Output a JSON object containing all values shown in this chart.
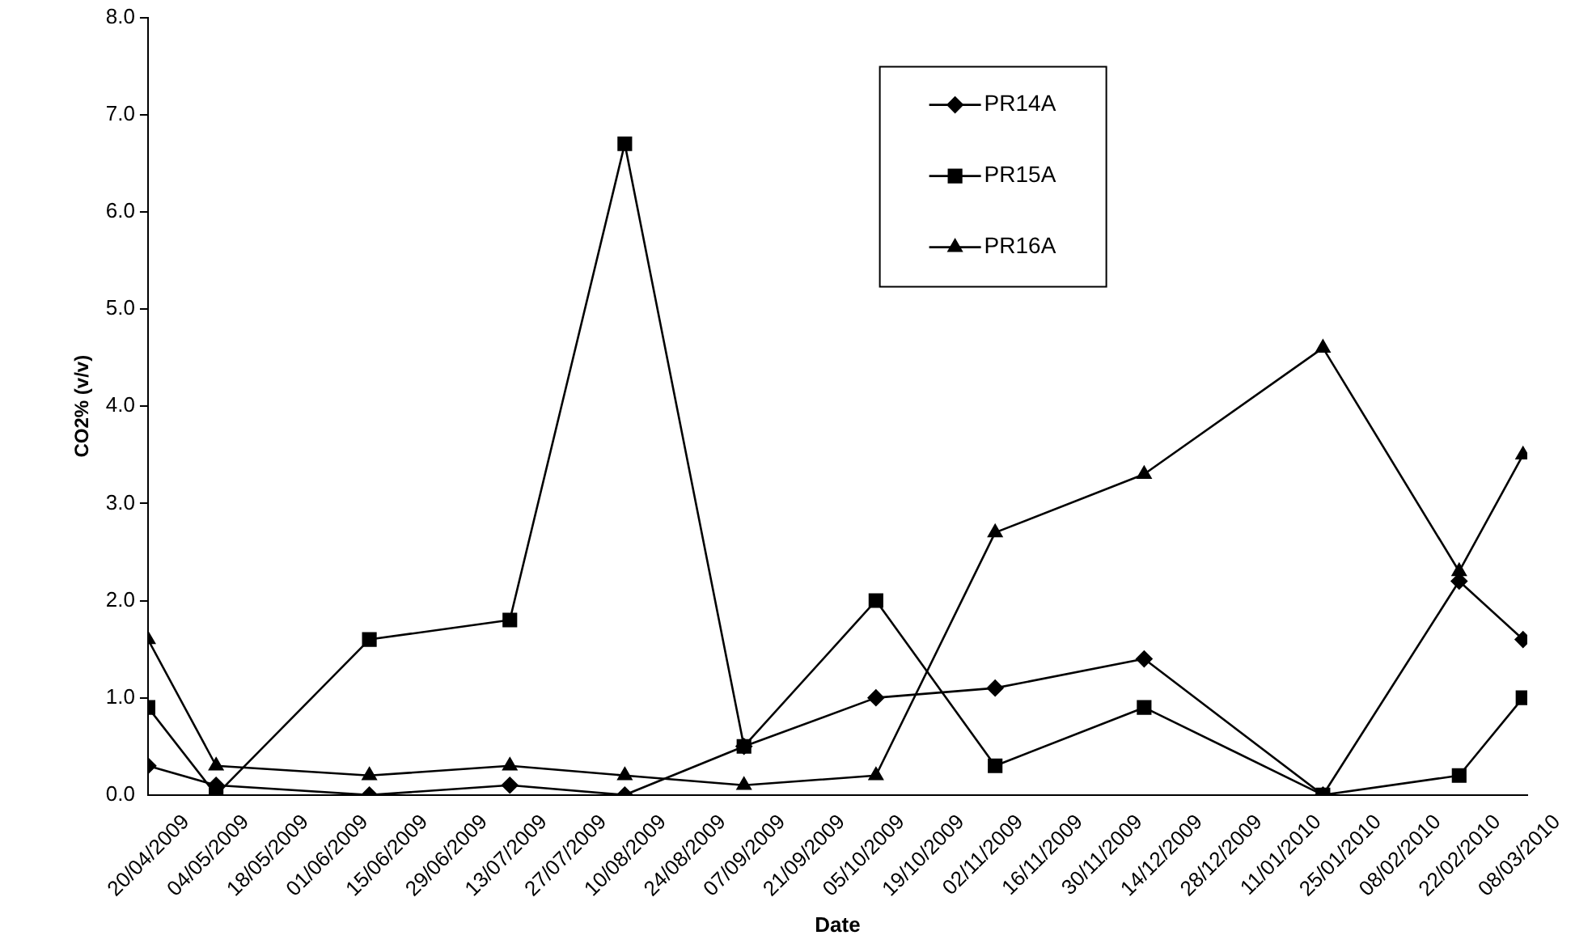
{
  "chart_data": {
    "type": "line",
    "xlabel": "Date",
    "ylabel": "CO2% (v/v)",
    "x": [
      "2009-04-20",
      "2009-05-06",
      "2009-06-11",
      "2009-07-14",
      "2009-08-10",
      "2009-09-07",
      "2009-10-08",
      "2009-11-05",
      "2009-12-10",
      "2010-01-21",
      "2010-02-22",
      "2010-03-09"
    ],
    "series": [
      {
        "name": "PR14A",
        "color": "#000000",
        "marker": "diamond",
        "values": [
          0.3,
          0.1,
          0.0,
          0.1,
          0.0,
          0.5,
          1.0,
          1.1,
          1.4,
          0.0,
          2.2,
          1.6
        ]
      },
      {
        "name": "PR15A",
        "color": "#000000",
        "marker": "square",
        "values": [
          0.9,
          0.0,
          1.6,
          1.8,
          6.7,
          0.5,
          2.0,
          0.3,
          0.9,
          0.0,
          0.2,
          1.0
        ]
      },
      {
        "name": "PR16A",
        "color": "#000000",
        "marker": "triangle",
        "values": [
          1.6,
          0.3,
          0.2,
          0.3,
          0.2,
          0.1,
          0.2,
          2.7,
          3.3,
          4.6,
          2.3,
          3.5
        ]
      }
    ],
    "xlim": [
      "2009-04-20",
      "2010-03-10"
    ],
    "xticks": [
      {
        "value": "2009-04-20",
        "label": "20/04/2009"
      },
      {
        "value": "2009-05-04",
        "label": "04/05/2009"
      },
      {
        "value": "2009-05-18",
        "label": "18/05/2009"
      },
      {
        "value": "2009-06-01",
        "label": "01/06/2009"
      },
      {
        "value": "2009-06-15",
        "label": "15/06/2009"
      },
      {
        "value": "2009-06-29",
        "label": "29/06/2009"
      },
      {
        "value": "2009-07-13",
        "label": "13/07/2009"
      },
      {
        "value": "2009-07-27",
        "label": "27/07/2009"
      },
      {
        "value": "2009-08-10",
        "label": "10/08/2009"
      },
      {
        "value": "2009-08-24",
        "label": "24/08/2009"
      },
      {
        "value": "2009-09-07",
        "label": "07/09/2009"
      },
      {
        "value": "2009-09-21",
        "label": "21/09/2009"
      },
      {
        "value": "2009-10-05",
        "label": "05/10/2009"
      },
      {
        "value": "2009-10-19",
        "label": "19/10/2009"
      },
      {
        "value": "2009-11-02",
        "label": "02/11/2009"
      },
      {
        "value": "2009-11-16",
        "label": "16/11/2009"
      },
      {
        "value": "2009-11-30",
        "label": "30/11/2009"
      },
      {
        "value": "2009-12-14",
        "label": "14/12/2009"
      },
      {
        "value": "2009-12-28",
        "label": "28/12/2009"
      },
      {
        "value": "2010-01-11",
        "label": "11/01/2010"
      },
      {
        "value": "2010-01-25",
        "label": "25/01/2010"
      },
      {
        "value": "2010-02-08",
        "label": "08/02/2010"
      },
      {
        "value": "2010-02-22",
        "label": "22/02/2010"
      },
      {
        "value": "2010-03-08",
        "label": "08/03/2010"
      }
    ],
    "ylim": [
      0,
      8
    ],
    "yticks": [
      {
        "value": 0,
        "label": "0.0"
      },
      {
        "value": 1,
        "label": "1.0"
      },
      {
        "value": 2,
        "label": "2.0"
      },
      {
        "value": 3,
        "label": "3.0"
      },
      {
        "value": 4,
        "label": "4.0"
      },
      {
        "value": 5,
        "label": "5.0"
      },
      {
        "value": 6,
        "label": "6.0"
      },
      {
        "value": 7,
        "label": "7.0"
      },
      {
        "value": 8,
        "label": "8.0"
      }
    ],
    "grid": false,
    "legend": "top",
    "line_style": "solid"
  }
}
